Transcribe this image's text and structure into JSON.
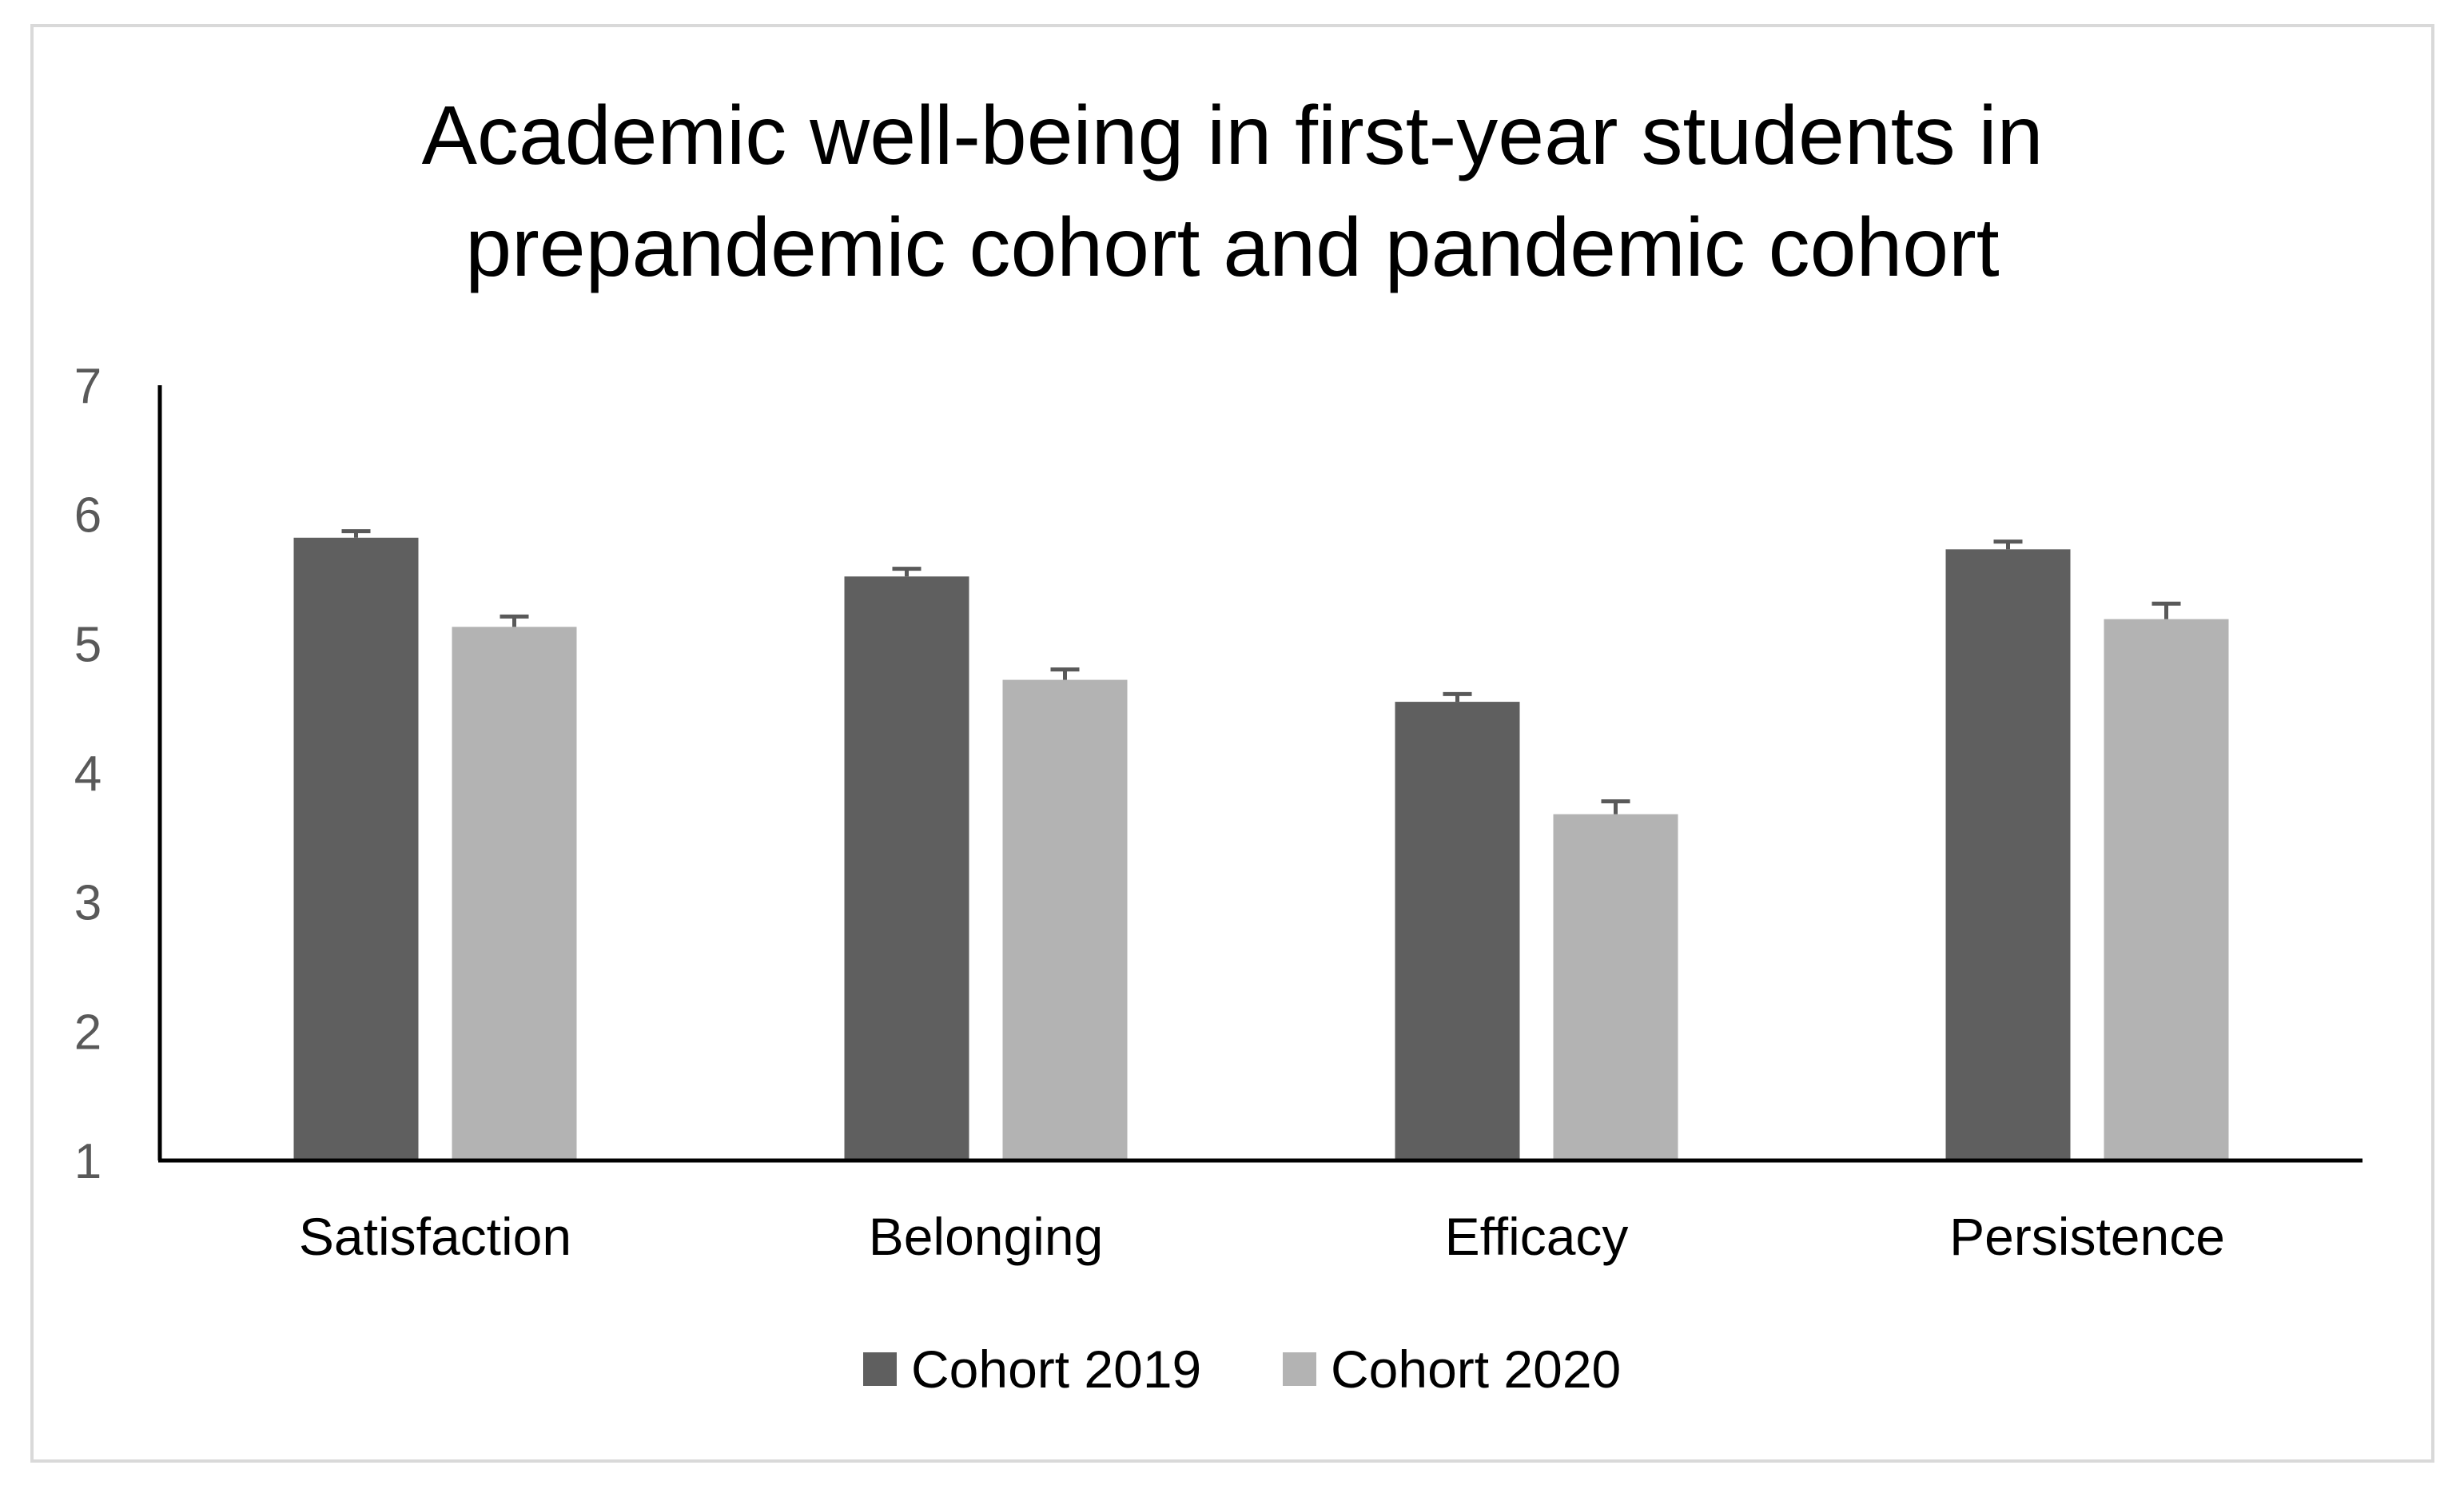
{
  "chart_data": {
    "type": "bar",
    "title": [
      "Academic well-being in first-year students in",
      "prepandemic cohort and pandemic cohort"
    ],
    "xlabel": "",
    "ylabel": "",
    "ylim": [
      1,
      7
    ],
    "yticks": [
      "1",
      "2",
      "3",
      "4",
      "5",
      "6",
      "7"
    ],
    "categories": [
      "Satisfaction",
      "Belonging",
      "Efficacy",
      "Persistence"
    ],
    "series": [
      {
        "name": "Cohort 2019",
        "color": "#5f5f5f",
        "values": [
          5.82,
          5.52,
          4.55,
          5.73
        ],
        "errors": [
          0.05,
          0.06,
          0.06,
          0.06
        ]
      },
      {
        "name": "Cohort 2020",
        "color": "#b3b3b3",
        "values": [
          5.13,
          4.72,
          3.68,
          5.19
        ],
        "errors": [
          0.08,
          0.08,
          0.1,
          0.12
        ]
      }
    ],
    "legend_position": "bottom",
    "grid": false
  }
}
